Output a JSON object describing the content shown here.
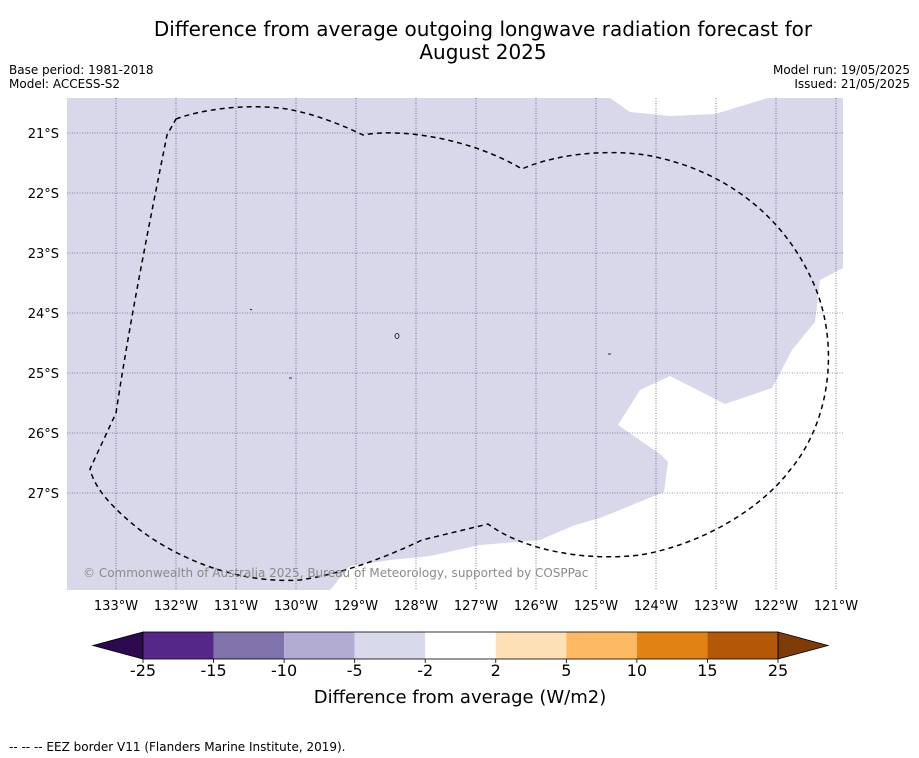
{
  "title_line1": "Difference from average outgoing longwave radiation forecast for",
  "title_line2": "August 2025",
  "base_period": "Base period: 1981-2018",
  "model": "Model: ACCESS-S2",
  "model_run": "Model run: 19/05/2025",
  "issued": "Issued: 21/05/2025",
  "map": {
    "lat_labels": [
      "21°S",
      "22°S",
      "23°S",
      "24°S",
      "25°S",
      "26°S",
      "27°S"
    ],
    "lon_labels": [
      "133°W",
      "132°W",
      "131°W",
      "130°W",
      "129°W",
      "128°W",
      "127°W",
      "126°W",
      "125°W",
      "124°W",
      "123°W",
      "122°W",
      "121°W"
    ],
    "copyright": "© Commonwealth of Australia 2025, Bureau of Meteorology, supported by COSPPac",
    "colors": {
      "anomaly_light_purple": "#d8d8ea",
      "background": "#ffffff",
      "grid": "#333366",
      "eez_border": "#000000"
    }
  },
  "colorbar": {
    "ticks": [
      "-25",
      "-15",
      "-10",
      "-5",
      "-2",
      "2",
      "5",
      "10",
      "15",
      "25"
    ],
    "colors": [
      "#2d0a4e",
      "#542788",
      "#8073ac",
      "#b2abd2",
      "#d8daeb",
      "#ffffff",
      "#fee0b6",
      "#fdb863",
      "#e08214",
      "#b35806",
      "#7f3b08"
    ],
    "label": "Difference from average (W/m2)"
  },
  "footnote": "--  --  -- EEZ border V11 (Flanders Marine Institute, 2019)."
}
